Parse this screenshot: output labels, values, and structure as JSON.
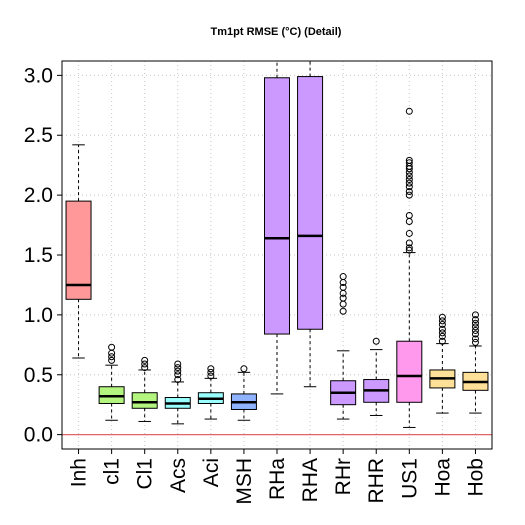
{
  "chart_data": {
    "type": "box",
    "title": "Tm1pt RMSE (°C) (Detail)",
    "xlabel": "",
    "ylabel": "",
    "ylim": [
      -0.12,
      3.12
    ],
    "yticks": [
      "0.0",
      "0.5",
      "1.0",
      "1.5",
      "2.0",
      "2.5",
      "3.0"
    ],
    "ytick_values": [
      0.0,
      0.5,
      1.0,
      1.5,
      2.0,
      2.5,
      3.0
    ],
    "grid": true,
    "reference_line": {
      "y": 0.0,
      "color": "#e06666"
    },
    "categories": [
      "Inh",
      "cl1",
      "Cl1",
      "Acs",
      "Aci",
      "MSH",
      "RHa",
      "RHA",
      "RHr",
      "RHR",
      "US1",
      "Hoa",
      "Hob"
    ],
    "boxes": [
      {
        "category": "Inh",
        "color": "#ff9999",
        "whisker_low": 0.64,
        "q1": 1.13,
        "median": 1.25,
        "q3": 1.95,
        "whisker_high": 2.42,
        "outliers": []
      },
      {
        "category": "cl1",
        "color": "#b3f57f",
        "whisker_low": 0.12,
        "q1": 0.26,
        "median": 0.32,
        "q3": 0.4,
        "whisker_high": 0.58,
        "outliers": [
          0.62,
          0.65,
          0.68,
          0.73
        ]
      },
      {
        "category": "Cl1",
        "color": "#b3f57f",
        "whisker_low": 0.11,
        "q1": 0.22,
        "median": 0.27,
        "q3": 0.35,
        "whisker_high": 0.54,
        "outliers": [
          0.56,
          0.59,
          0.62
        ]
      },
      {
        "category": "Acs",
        "color": "#99ffff",
        "whisker_low": 0.09,
        "q1": 0.22,
        "median": 0.26,
        "q3": 0.31,
        "whisker_high": 0.44,
        "outliers": [
          0.46,
          0.5,
          0.53,
          0.56,
          0.59
        ]
      },
      {
        "category": "Aci",
        "color": "#99ffff",
        "whisker_low": 0.13,
        "q1": 0.26,
        "median": 0.3,
        "q3": 0.35,
        "whisker_high": 0.47,
        "outliers": [
          0.49,
          0.52,
          0.55
        ]
      },
      {
        "category": "MSH",
        "color": "#8fb3ff",
        "whisker_low": 0.12,
        "q1": 0.21,
        "median": 0.27,
        "q3": 0.34,
        "whisker_high": 0.52,
        "outliers": [
          0.55
        ]
      },
      {
        "category": "RHa",
        "color": "#cc99ff",
        "whisker_low": 0.34,
        "q1": 0.84,
        "median": 1.64,
        "q3": 2.98,
        "whisker_high": 3.12,
        "outliers": []
      },
      {
        "category": "RHA",
        "color": "#cc99ff",
        "whisker_low": 0.4,
        "q1": 0.88,
        "median": 1.66,
        "q3": 2.99,
        "whisker_high": 3.12,
        "outliers": []
      },
      {
        "category": "RHr",
        "color": "#cc99ff",
        "whisker_low": 0.13,
        "q1": 0.25,
        "median": 0.35,
        "q3": 0.45,
        "whisker_high": 0.7,
        "outliers": [
          1.03,
          1.09,
          1.14,
          1.18,
          1.23,
          1.27,
          1.32
        ]
      },
      {
        "category": "RHR",
        "color": "#cc99ff",
        "whisker_low": 0.16,
        "q1": 0.27,
        "median": 0.37,
        "q3": 0.46,
        "whisker_high": 0.71,
        "outliers": [
          0.78
        ]
      },
      {
        "category": "US1",
        "color": "#ff99ee",
        "whisker_low": 0.06,
        "q1": 0.27,
        "median": 0.49,
        "q3": 0.78,
        "whisker_high": 1.52,
        "outliers": [
          1.54,
          1.56,
          1.6,
          1.68,
          1.78,
          1.83,
          2.0,
          2.03,
          2.07,
          2.1,
          2.13,
          2.16,
          2.19,
          2.22,
          2.24,
          2.27,
          2.29,
          2.7
        ]
      },
      {
        "category": "Hoa",
        "color": "#ffe099",
        "whisker_low": 0.18,
        "q1": 0.39,
        "median": 0.47,
        "q3": 0.54,
        "whisker_high": 0.76,
        "outliers": [
          0.78,
          0.82,
          0.85,
          0.88,
          0.92,
          0.95,
          0.98
        ]
      },
      {
        "category": "Hob",
        "color": "#ffe099",
        "whisker_low": 0.18,
        "q1": 0.37,
        "median": 0.44,
        "q3": 0.52,
        "whisker_high": 0.74,
        "outliers": [
          0.77,
          0.8,
          0.84,
          0.87,
          0.9,
          0.93,
          0.96,
          1.0
        ]
      }
    ]
  }
}
